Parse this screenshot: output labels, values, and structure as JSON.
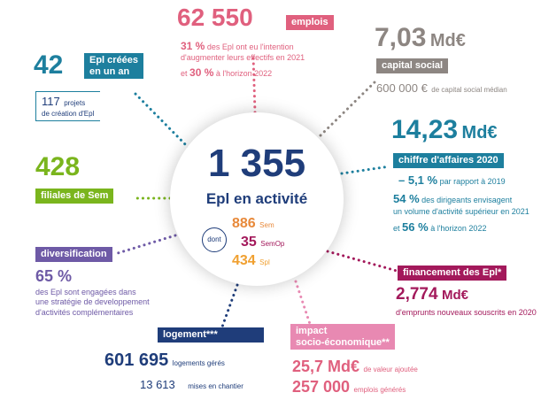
{
  "colors": {
    "navy": "#1f3d7a",
    "teal": "#1d7f9e",
    "green": "#7ab51d",
    "purple": "#6e5aa6",
    "pink": "#e0607e",
    "gray": "#8d8682",
    "magenta": "#a3195b",
    "orange": "#e8893a",
    "violet": "#6d3b8e",
    "lightpink": "#e889b2"
  },
  "emplois": {
    "value": "62 550",
    "label": "emplois",
    "pct1": "31 %",
    "text1a": "des Epl ont eu l'intention",
    "text1b": "d'augmenter leurs effectifs en 2021",
    "et": "et",
    "pct2": "30 %",
    "text2": "à l'horizon 2022"
  },
  "capital": {
    "value": "7,03",
    "unit": "Md€",
    "label": "capital social",
    "sub_value": "600 000 €",
    "sub_text": "de capital social médian"
  },
  "creees": {
    "value": "42",
    "label_line1": "Epl créées",
    "label_line2": "en un an",
    "sub_value": "117",
    "sub_text1": "projets",
    "sub_text2": "de création d'Epl"
  },
  "filiales": {
    "value": "428",
    "label": "filiales de Sem"
  },
  "center": {
    "value": "1 355",
    "label": "Epl en activité",
    "dont": "dont",
    "rows": [
      {
        "value": "886",
        "label": "Sem"
      },
      {
        "value": "35",
        "label": "SemOp"
      },
      {
        "value": "434",
        "label": "Spl"
      }
    ]
  },
  "ca": {
    "value": "14,23",
    "unit": "Md€",
    "label": "chiffre d'affaires 2020",
    "pct1": "– 5,1 %",
    "text1": "par rapport à 2019",
    "pct2": "54 %",
    "text2a": "des dirigeants envisagent",
    "text2b": "un volume d'activité supérieur en 2021",
    "et": "et",
    "pct3": "56 %",
    "text3": "à l'horizon 2022"
  },
  "diversification": {
    "label": "diversification",
    "value": "65 %",
    "text1": "des Epl sont engagées dans",
    "text2": "une stratégie de developpement",
    "text3": "d'activités complémentaires"
  },
  "financement": {
    "label": "financement des Epl*",
    "value": "2,774",
    "unit": "Md€",
    "text": "d'emprunts nouveaux souscrits en 2020"
  },
  "logement": {
    "label": "logement***",
    "value1": "601 695",
    "text1": "logements gérés",
    "value2": "13 613",
    "text2": "mises en chantier"
  },
  "impact": {
    "label_line1": "impact",
    "label_line2": "socio-économique**",
    "value1": "25,7 Md€",
    "text1": "de valeur ajoutée",
    "value2": "257 000",
    "text2": "emplois générés"
  }
}
